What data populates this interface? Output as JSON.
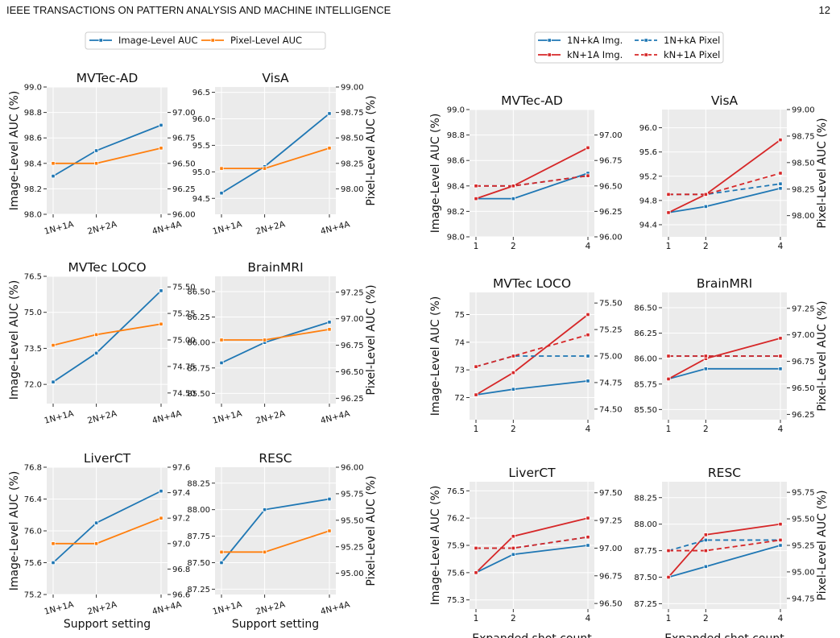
{
  "header": {
    "title": "IEEE TRANSACTIONS ON PATTERN ANALYSIS AND MACHINE INTELLIGENCE",
    "page": "12"
  },
  "colors": {
    "blue": "#1f77b4",
    "orange": "#ff7f0e",
    "red": "#d62728",
    "panel_bg": "#ebebeb"
  },
  "legends": {
    "left": [
      "Image-Level AUC",
      "Pixel-Level AUC"
    ],
    "right": [
      "1N+kA Img.",
      "kN+1A Img.",
      "1N+kA Pixel",
      "kN+1A Pixel"
    ]
  },
  "labels": {
    "image_auc": "Image-Level AUC (%)",
    "pixel_auc": "Pixel-Level AUC (%)",
    "support_setting": "Support setting",
    "expanded_shot": "Expanded shot count"
  },
  "chart_data": [
    {
      "type": "line",
      "title": "MVTec-AD",
      "categories": [
        "1N+1A",
        "2N+2A",
        "4N+4A"
      ],
      "ylim": [
        98.0,
        99.0
      ],
      "y2lim": [
        96.0,
        97.25
      ],
      "yticks": [
        "98.0",
        "98.2",
        "98.4",
        "98.6",
        "98.8",
        "99.0"
      ],
      "y2ticks": [
        "96.00",
        "96.25",
        "96.50",
        "96.75",
        "97.00"
      ],
      "series": [
        {
          "name": "Image-Level AUC",
          "axis": "left",
          "values": [
            98.3,
            98.5,
            98.7
          ]
        },
        {
          "name": "Pixel-Level AUC",
          "axis": "right",
          "values": [
            96.5,
            96.5,
            96.65
          ]
        }
      ]
    },
    {
      "type": "line",
      "title": "VisA",
      "categories": [
        "1N+1A",
        "2N+2A",
        "4N+4A"
      ],
      "ylim": [
        94.2,
        96.6
      ],
      "y2lim": [
        97.75,
        99.0
      ],
      "yticks": [
        "94.5",
        "95.0",
        "95.5",
        "96.0",
        "96.5"
      ],
      "y2ticks": [
        "98.00",
        "98.25",
        "98.50",
        "98.75",
        "99.00"
      ],
      "series": [
        {
          "name": "Image-Level AUC",
          "axis": "left",
          "values": [
            94.6,
            95.1,
            96.1
          ]
        },
        {
          "name": "Pixel-Level AUC",
          "axis": "right",
          "values": [
            98.2,
            98.2,
            98.4
          ]
        }
      ]
    },
    {
      "type": "line",
      "title": "MVTec LOCO",
      "categories": [
        "1N+1A",
        "2N+2A",
        "4N+4A"
      ],
      "ylim": [
        71.2,
        76.5
      ],
      "y2lim": [
        74.4,
        75.6
      ],
      "yticks": [
        "72.0",
        "73.5",
        "75.0",
        "76.5"
      ],
      "y2ticks": [
        "74.50",
        "74.75",
        "75.00",
        "75.25",
        "75.50"
      ],
      "series": [
        {
          "name": "Image-Level AUC",
          "axis": "left",
          "values": [
            72.1,
            73.3,
            75.9
          ]
        },
        {
          "name": "Pixel-Level AUC",
          "axis": "right",
          "values": [
            74.95,
            75.05,
            75.15
          ]
        }
      ]
    },
    {
      "type": "line",
      "title": "BrainMRI",
      "categories": [
        "1N+1A",
        "2N+2A",
        "4N+4A"
      ],
      "ylim": [
        85.4,
        86.65
      ],
      "y2lim": [
        96.2,
        97.4
      ],
      "yticks": [
        "85.50",
        "85.75",
        "86.00",
        "86.25",
        "86.50"
      ],
      "y2ticks": [
        "96.25",
        "96.50",
        "96.75",
        "97.00",
        "97.25"
      ],
      "series": [
        {
          "name": "Image-Level AUC",
          "axis": "left",
          "values": [
            85.8,
            86.0,
            86.2
          ]
        },
        {
          "name": "Pixel-Level AUC",
          "axis": "right",
          "values": [
            96.8,
            96.8,
            96.9
          ]
        }
      ]
    },
    {
      "type": "line",
      "title": "LiverCT",
      "categories": [
        "1N+1A",
        "2N+2A",
        "4N+4A"
      ],
      "ylim": [
        75.2,
        76.8
      ],
      "y2lim": [
        96.6,
        97.6
      ],
      "yticks": [
        "75.2",
        "75.6",
        "76.0",
        "76.4",
        "76.8"
      ],
      "y2ticks": [
        "96.6",
        "96.8",
        "97.0",
        "97.2",
        "97.4",
        "97.6"
      ],
      "series": [
        {
          "name": "Image-Level AUC",
          "axis": "left",
          "values": [
            75.6,
            76.1,
            76.5
          ]
        },
        {
          "name": "Pixel-Level AUC",
          "axis": "right",
          "values": [
            97.0,
            97.0,
            97.2
          ]
        }
      ]
    },
    {
      "type": "line",
      "title": "RESC",
      "categories": [
        "1N+1A",
        "2N+2A",
        "4N+4A"
      ],
      "ylim": [
        87.2,
        88.4
      ],
      "y2lim": [
        94.8,
        96.0
      ],
      "yticks": [
        "87.25",
        "87.50",
        "87.75",
        "88.00",
        "88.25"
      ],
      "y2ticks": [
        "95.00",
        "95.25",
        "95.50",
        "95.75",
        "96.00"
      ],
      "series": [
        {
          "name": "Image-Level AUC",
          "axis": "left",
          "values": [
            87.5,
            88.0,
            88.1
          ]
        },
        {
          "name": "Pixel-Level AUC",
          "axis": "right",
          "values": [
            95.2,
            95.2,
            95.4
          ]
        }
      ]
    },
    {
      "type": "line",
      "title": "MVTec-AD",
      "x": [
        1,
        2,
        4
      ],
      "xticks": [
        "1",
        "2",
        "4"
      ],
      "ylim": [
        98.0,
        99.0
      ],
      "y2lim": [
        96.0,
        97.25
      ],
      "yticks": [
        "98.0",
        "98.2",
        "98.4",
        "98.6",
        "98.8",
        "99.0"
      ],
      "y2ticks": [
        "96.00",
        "96.25",
        "96.50",
        "96.75",
        "97.00"
      ],
      "series": [
        {
          "name": "1N+kA Img.",
          "axis": "left",
          "values": [
            98.3,
            98.3,
            98.5
          ]
        },
        {
          "name": "kN+1A Img.",
          "axis": "left",
          "values": [
            98.3,
            98.4,
            98.7
          ]
        },
        {
          "name": "1N+kA Pixel",
          "axis": "right",
          "values": [
            96.5,
            96.5,
            96.6
          ]
        },
        {
          "name": "kN+1A Pixel",
          "axis": "right",
          "values": [
            96.5,
            96.5,
            96.6
          ]
        }
      ]
    },
    {
      "type": "line",
      "title": "VisA",
      "x": [
        1,
        2,
        4
      ],
      "xticks": [
        "1",
        "2",
        "4"
      ],
      "ylim": [
        94.2,
        96.3
      ],
      "y2lim": [
        97.8,
        99.0
      ],
      "yticks": [
        "94.4",
        "94.8",
        "95.2",
        "95.6",
        "96.0"
      ],
      "y2ticks": [
        "98.00",
        "98.25",
        "98.50",
        "98.75",
        "99.00"
      ],
      "series": [
        {
          "name": "1N+kA Img.",
          "axis": "left",
          "values": [
            94.6,
            94.7,
            95.0
          ]
        },
        {
          "name": "kN+1A Img.",
          "axis": "left",
          "values": [
            94.6,
            94.9,
            95.8
          ]
        },
        {
          "name": "1N+kA Pixel",
          "axis": "right",
          "values": [
            98.2,
            98.2,
            98.3
          ]
        },
        {
          "name": "kN+1A Pixel",
          "axis": "right",
          "values": [
            98.2,
            98.2,
            98.4
          ]
        }
      ]
    },
    {
      "type": "line",
      "title": "MVTec LOCO",
      "x": [
        1,
        2,
        4
      ],
      "xticks": [
        "1",
        "2",
        "4"
      ],
      "ylim": [
        71.2,
        75.8
      ],
      "y2lim": [
        74.4,
        75.6
      ],
      "yticks": [
        "72",
        "73",
        "74",
        "75"
      ],
      "y2ticks": [
        "74.50",
        "74.75",
        "75.00",
        "75.25",
        "75.50"
      ],
      "series": [
        {
          "name": "1N+kA Img.",
          "axis": "left",
          "values": [
            72.1,
            72.3,
            72.6
          ]
        },
        {
          "name": "kN+1A Img.",
          "axis": "left",
          "values": [
            72.1,
            72.9,
            75.0
          ]
        },
        {
          "name": "1N+kA Pixel",
          "axis": "right",
          "values": [
            74.9,
            75.0,
            75.0
          ]
        },
        {
          "name": "kN+1A Pixel",
          "axis": "right",
          "values": [
            74.9,
            75.0,
            75.2
          ]
        }
      ]
    },
    {
      "type": "line",
      "title": "BrainMRI",
      "x": [
        1,
        2,
        4
      ],
      "xticks": [
        "1",
        "2",
        "4"
      ],
      "ylim": [
        85.4,
        86.65
      ],
      "y2lim": [
        96.2,
        97.4
      ],
      "yticks": [
        "85.50",
        "85.75",
        "86.00",
        "86.25",
        "86.50"
      ],
      "y2ticks": [
        "96.25",
        "96.50",
        "96.75",
        "97.00",
        "97.25"
      ],
      "series": [
        {
          "name": "1N+kA Img.",
          "axis": "left",
          "values": [
            85.8,
            85.9,
            85.9
          ]
        },
        {
          "name": "kN+1A Img.",
          "axis": "left",
          "values": [
            85.8,
            86.0,
            86.2
          ]
        },
        {
          "name": "1N+kA Pixel",
          "axis": "right",
          "values": [
            96.8,
            96.8,
            96.8
          ]
        },
        {
          "name": "kN+1A Pixel",
          "axis": "right",
          "values": [
            96.8,
            96.8,
            96.8
          ]
        }
      ]
    },
    {
      "type": "line",
      "title": "LiverCT",
      "x": [
        1,
        2,
        4
      ],
      "xticks": [
        "1",
        "2",
        "4"
      ],
      "ylim": [
        75.2,
        76.6
      ],
      "y2lim": [
        96.45,
        97.6
      ],
      "yticks": [
        "75.3",
        "75.6",
        "75.9",
        "76.2",
        "76.5"
      ],
      "y2ticks": [
        "96.50",
        "96.75",
        "97.00",
        "97.25",
        "97.50"
      ],
      "series": [
        {
          "name": "1N+kA Img.",
          "axis": "left",
          "values": [
            75.6,
            75.8,
            75.9
          ]
        },
        {
          "name": "kN+1A Img.",
          "axis": "left",
          "values": [
            75.6,
            76.0,
            76.2
          ]
        },
        {
          "name": "1N+kA Pixel",
          "axis": "right",
          "values": [
            97.0,
            97.0,
            97.1
          ]
        },
        {
          "name": "kN+1A Pixel",
          "axis": "right",
          "values": [
            97.0,
            97.0,
            97.1
          ]
        }
      ]
    },
    {
      "type": "line",
      "title": "RESC",
      "x": [
        1,
        2,
        4
      ],
      "xticks": [
        "1",
        "2",
        "4"
      ],
      "ylim": [
        87.2,
        88.4
      ],
      "y2lim": [
        94.65,
        95.85
      ],
      "yticks": [
        "87.25",
        "87.50",
        "87.75",
        "88.00",
        "88.25"
      ],
      "y2ticks": [
        "94.75",
        "95.00",
        "95.25",
        "95.50",
        "95.75"
      ],
      "series": [
        {
          "name": "1N+kA Img.",
          "axis": "left",
          "values": [
            87.5,
            87.6,
            87.8
          ]
        },
        {
          "name": "kN+1A Img.",
          "axis": "left",
          "values": [
            87.5,
            87.9,
            88.0
          ]
        },
        {
          "name": "1N+kA Pixel",
          "axis": "right",
          "values": [
            95.2,
            95.3,
            95.3
          ]
        },
        {
          "name": "kN+1A Pixel",
          "axis": "right",
          "values": [
            95.2,
            95.2,
            95.3
          ]
        }
      ]
    }
  ]
}
